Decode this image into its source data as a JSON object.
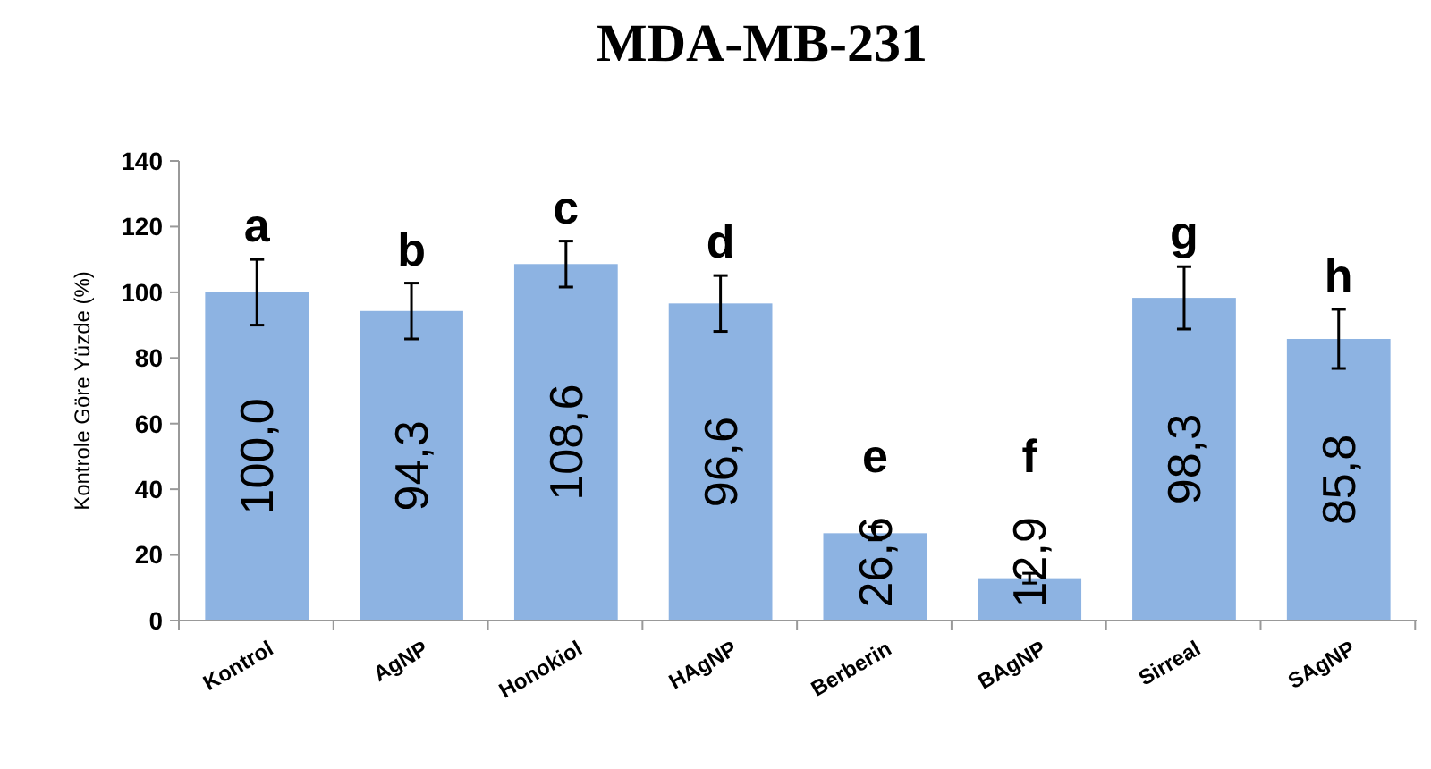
{
  "chart_data": {
    "type": "bar",
    "title": "MDA-MB-231",
    "ylabel": "Kontrole Göre Yüzde (%)",
    "categories": [
      "Kontrol",
      "AgNP",
      "Honokiol",
      "HAgNP",
      "Berberin",
      "BAgNP",
      "Sirreal",
      "SAgNP"
    ],
    "values": [
      100.0,
      94.3,
      108.6,
      96.6,
      26.6,
      12.9,
      98.3,
      85.8
    ],
    "errors": [
      10,
      8.5,
      7,
      8.5,
      2,
      1.5,
      9.5,
      9
    ],
    "value_labels": [
      "100,0",
      "94,3",
      "108,6",
      "96,6",
      "26,6",
      "12,9",
      "98,3",
      "85,8"
    ],
    "color": "#8db3e2",
    "ylim": [
      0,
      140
    ],
    "yticks": [
      0,
      20,
      40,
      60,
      80,
      100,
      120,
      140
    ],
    "grid": false,
    "annotations": [
      "a",
      "b",
      "c",
      "d",
      "e",
      "f",
      "g",
      "h"
    ]
  }
}
